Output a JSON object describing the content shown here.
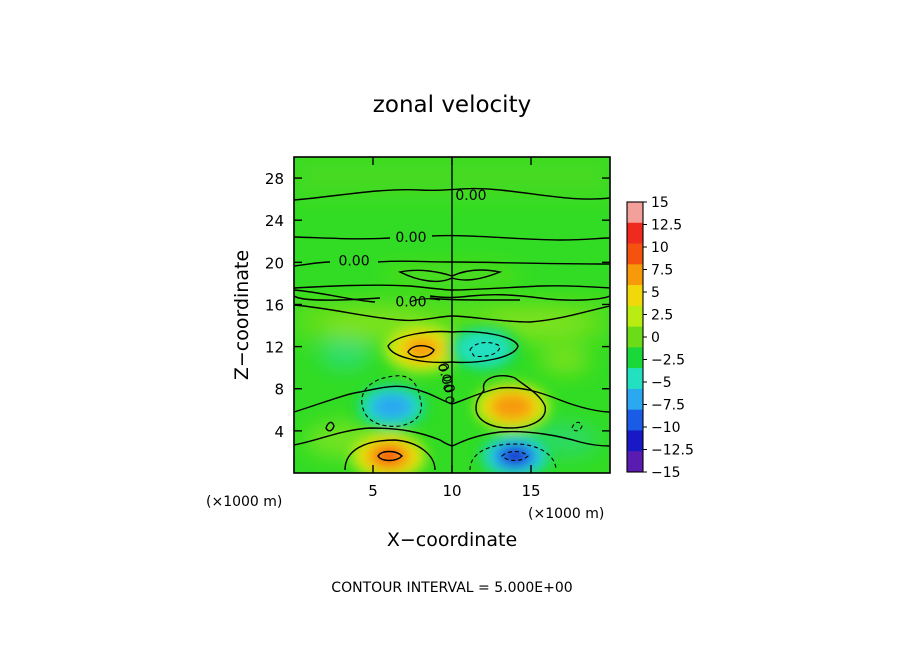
{
  "chart_data": {
    "type": "heatmap",
    "title": "zonal velocity",
    "xlabel": "X−coordinate",
    "ylabel": "Z−coordinate",
    "x_unit_left": "(×1000 m)",
    "x_unit_right": "(×1000 m)",
    "xlim": [
      0,
      20
    ],
    "ylim": [
      0,
      30
    ],
    "x_ticks": [
      5,
      10,
      15
    ],
    "x_tick_labels": [
      "5",
      "10",
      "15"
    ],
    "y_ticks": [
      4,
      8,
      12,
      16,
      20,
      24,
      28
    ],
    "y_tick_labels": [
      "4",
      "8",
      "12",
      "16",
      "20",
      "24",
      "28"
    ],
    "contour_labels": [
      {
        "text": "0.00",
        "x": 11.2,
        "z": 26.3
      },
      {
        "text": "0.00",
        "x": 7.4,
        "z": 22.3
      },
      {
        "text": "0.00",
        "x": 3.8,
        "z": 20.1
      },
      {
        "text": "0.00",
        "x": 7.4,
        "z": 16.2
      },
      {
        "text": "0.00",
        "x": 9.6,
        "z": 9.0,
        "rotated": true
      }
    ],
    "colorbar": {
      "levels": [
        15,
        12.5,
        10,
        7.5,
        5,
        2.5,
        0,
        -2.5,
        -5,
        -7.5,
        -10,
        -12.5,
        -15
      ],
      "labels": [
        "15",
        "12.5",
        "10",
        "7.5",
        "5",
        "2.5",
        "0",
        "−2.5",
        "−5",
        "−7.5",
        "−10",
        "−12.5",
        "−15"
      ],
      "colors": [
        "#f4a09a",
        "#ef2a1e",
        "#f4520e",
        "#f79a0a",
        "#f0d80a",
        "#b8ec12",
        "#6bdc18",
        "#1bd83a",
        "#22e0c0",
        "#2aa8f0",
        "#1a5ce6",
        "#1818c4",
        "#5a1cb0"
      ]
    },
    "features": [
      {
        "x": 6.0,
        "z": 1.6,
        "value": 9.5
      },
      {
        "x": 14.0,
        "z": 1.6,
        "value": -11.5
      },
      {
        "x": 6.2,
        "z": 6.3,
        "value": -7.5
      },
      {
        "x": 13.8,
        "z": 6.3,
        "value": 8.0
      },
      {
        "x": 8.1,
        "z": 11.8,
        "value": 6.5
      },
      {
        "x": 12.0,
        "z": 11.8,
        "value": -6.0
      }
    ],
    "contour_interval_text": "CONTOUR INTERVAL = 5.000E+00"
  },
  "colors": {
    "frame": "#000000",
    "background": "#ffffff"
  }
}
